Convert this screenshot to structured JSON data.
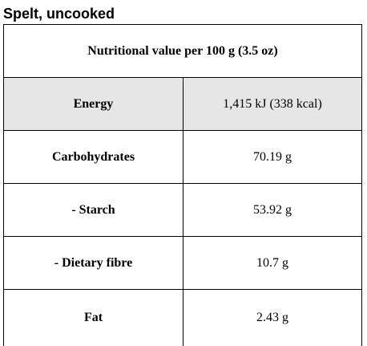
{
  "page": {
    "title": "Spelt, uncooked"
  },
  "table": {
    "header": "Nutritional value per 100 g (3.5 oz)",
    "rows": [
      {
        "label": "Energy",
        "value": "1,415 kJ (338 kcal)"
      },
      {
        "label": "Carbohydrates",
        "value": "70.19 g"
      },
      {
        "label": "- Starch",
        "value": "53.92 g"
      },
      {
        "label": "- Dietary fibre",
        "value": "10.7 g"
      },
      {
        "label": "Fat",
        "value": "2.43 g"
      }
    ]
  },
  "colors": {
    "shaded_row": "#e6e6e6",
    "border": "#000000"
  }
}
